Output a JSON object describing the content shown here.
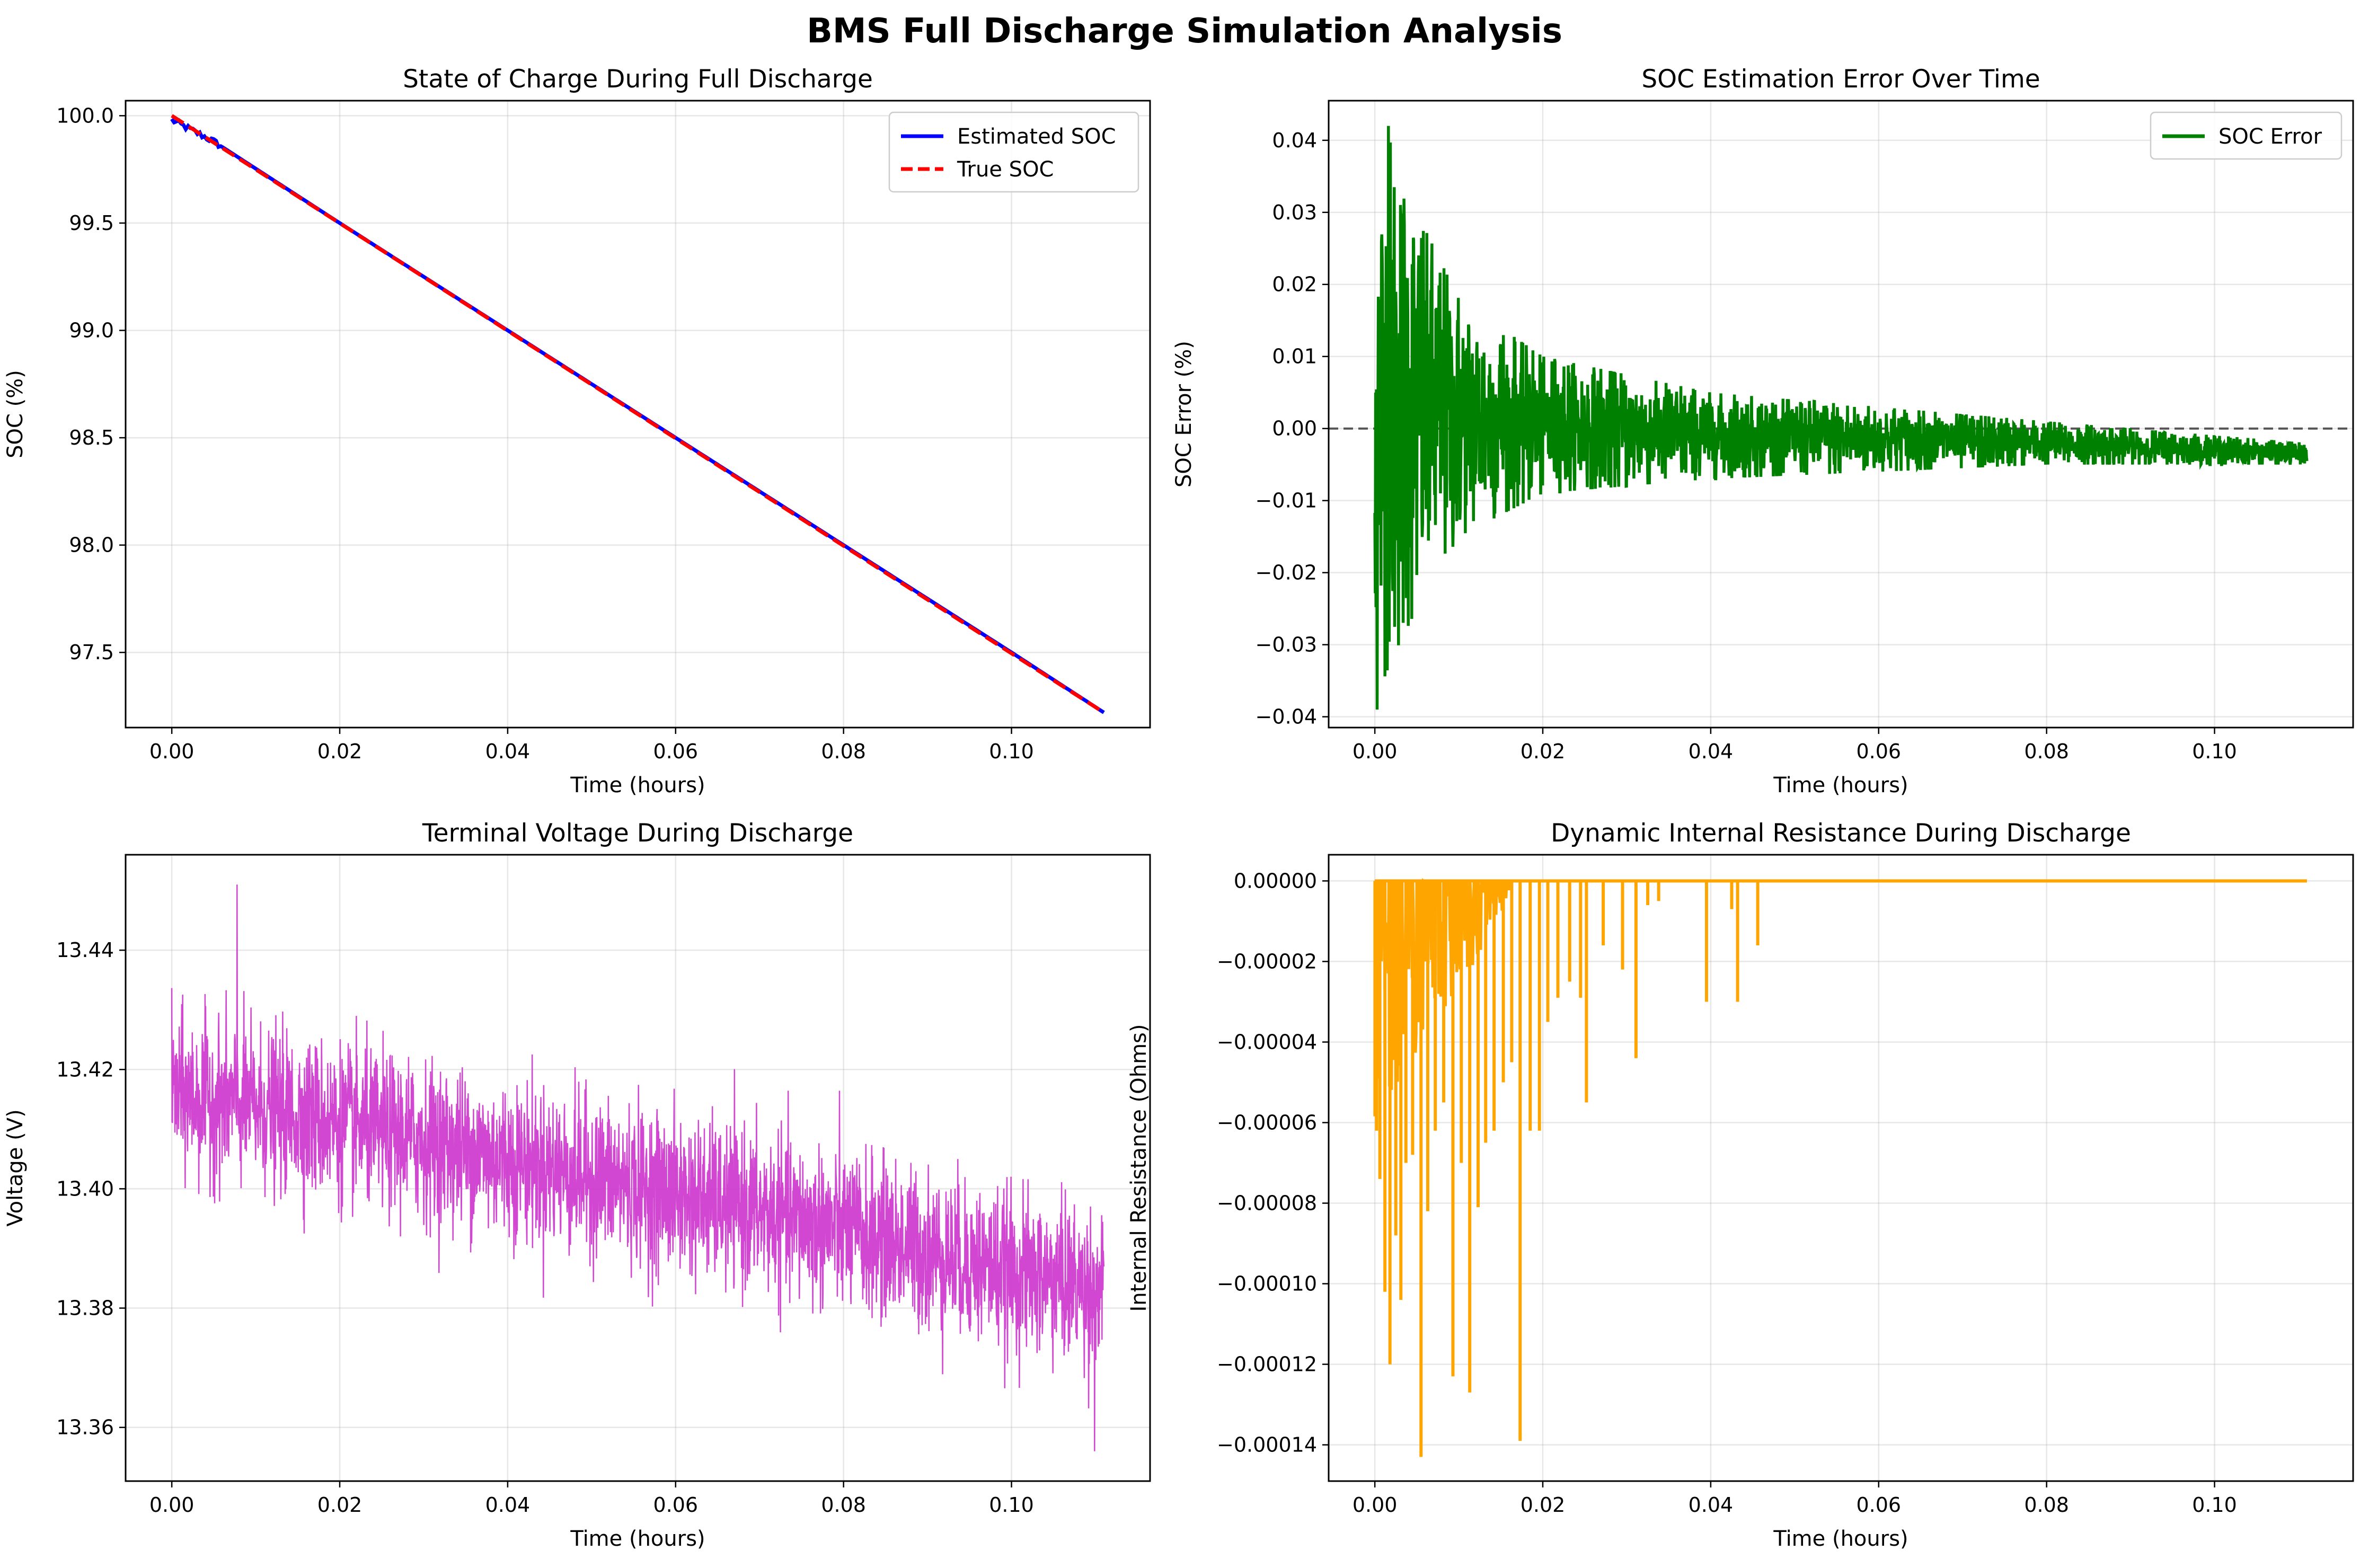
{
  "figure": {
    "title": "BMS Full Discharge Simulation Analysis"
  },
  "chart_data": [
    {
      "id": "soc",
      "type": "line",
      "title": "State of Charge During Full Discharge",
      "xlabel": "Time (hours)",
      "ylabel": "SOC (%)",
      "xlim": [
        -0.0055,
        0.1165
      ],
      "ylim": [
        97.15,
        100.07
      ],
      "xticks": [
        0.0,
        0.02,
        0.04,
        0.06,
        0.08,
        0.1
      ],
      "xtick_labels": [
        "0.00",
        "0.02",
        "0.04",
        "0.06",
        "0.08",
        "0.10"
      ],
      "yticks": [
        97.5,
        98.0,
        98.5,
        99.0,
        99.5,
        100.0
      ],
      "ytick_labels": [
        "97.5",
        "98.0",
        "98.5",
        "99.0",
        "99.5",
        "100.0"
      ],
      "grid": true,
      "legend": "top-right",
      "series": [
        {
          "name": "Estimated SOC",
          "color": "#0000ff",
          "style": "solid",
          "x": [
            0.0,
            0.005,
            0.02,
            0.04,
            0.06,
            0.08,
            0.1,
            0.111
          ],
          "y": [
            99.98,
            99.88,
            99.5,
            99.0,
            98.5,
            98.0,
            97.5,
            97.22
          ]
        },
        {
          "name": "True SOC",
          "color": "#ff0000",
          "style": "dashed",
          "x": [
            0.0,
            0.111
          ],
          "y": [
            100.0,
            97.22
          ]
        }
      ]
    },
    {
      "id": "error",
      "type": "line",
      "title": "SOC Estimation Error Over Time",
      "xlabel": "Time (hours)",
      "ylabel": "SOC Error (%)",
      "xlim": [
        -0.0055,
        0.1165
      ],
      "ylim": [
        -0.0415,
        0.0455
      ],
      "xticks": [
        0.0,
        0.02,
        0.04,
        0.06,
        0.08,
        0.1
      ],
      "xtick_labels": [
        "0.00",
        "0.02",
        "0.04",
        "0.06",
        "0.08",
        "0.10"
      ],
      "yticks": [
        -0.04,
        -0.03,
        -0.02,
        -0.01,
        0.0,
        0.01,
        0.02,
        0.03,
        0.04
      ],
      "ytick_labels": [
        "−0.04",
        "−0.03",
        "−0.02",
        "−0.01",
        "0.00",
        "0.01",
        "0.02",
        "0.03",
        "0.04"
      ],
      "grid": true,
      "legend": "top-right",
      "reference_line": {
        "y": 0.0,
        "style": "dashed",
        "color": "#555555"
      },
      "envelope": {
        "x": [
          0.0,
          0.002,
          0.005,
          0.01,
          0.02,
          0.04,
          0.06,
          0.08,
          0.111
        ],
        "upper": [
          0.036,
          0.04,
          0.03,
          0.018,
          0.01,
          0.005,
          0.003,
          0.001,
          -0.002
        ],
        "lower": [
          -0.038,
          -0.032,
          -0.025,
          -0.015,
          -0.009,
          -0.007,
          -0.006,
          -0.005,
          -0.005
        ],
        "peak": 0.042,
        "trough": -0.039
      },
      "series": [
        {
          "name": "SOC Error",
          "color": "#008000",
          "style": "solid"
        }
      ]
    },
    {
      "id": "voltage",
      "type": "line",
      "title": "Terminal Voltage During Discharge",
      "xlabel": "Time (hours)",
      "ylabel": "Voltage (V)",
      "xlim": [
        -0.0055,
        0.1165
      ],
      "ylim": [
        13.351,
        13.456
      ],
      "xticks": [
        0.0,
        0.02,
        0.04,
        0.06,
        0.08,
        0.1
      ],
      "xtick_labels": [
        "0.00",
        "0.02",
        "0.04",
        "0.06",
        "0.08",
        "0.10"
      ],
      "yticks": [
        13.36,
        13.38,
        13.4,
        13.42,
        13.44
      ],
      "ytick_labels": [
        "13.36",
        "13.38",
        "13.40",
        "13.42",
        "13.44"
      ],
      "grid": true,
      "mean_trend": {
        "x": [
          0.0,
          0.02,
          0.04,
          0.06,
          0.08,
          0.1,
          0.111
        ],
        "y": [
          13.416,
          13.411,
          13.405,
          13.399,
          13.393,
          13.386,
          13.383
        ]
      },
      "noise_sd": 0.0065,
      "extremes": {
        "max": 13.451,
        "min": 13.356
      },
      "series": [
        {
          "name": "Terminal Voltage",
          "color": "#cc33cc",
          "style": "solid"
        }
      ]
    },
    {
      "id": "resistance",
      "type": "line",
      "title": "Dynamic Internal Resistance During Discharge",
      "xlabel": "Time (hours)",
      "ylabel": "Internal Resistance (Ohms)",
      "xlim": [
        -0.0055,
        0.1165
      ],
      "ylim": [
        -0.000149,
        6.5e-06
      ],
      "xticks": [
        0.0,
        0.02,
        0.04,
        0.06,
        0.08,
        0.1
      ],
      "xtick_labels": [
        "0.00",
        "0.02",
        "0.04",
        "0.06",
        "0.08",
        "0.10"
      ],
      "yticks": [
        -0.00014,
        -0.00012,
        -0.0001,
        -8e-05,
        -6e-05,
        -4e-05,
        -2e-05,
        0.0
      ],
      "ytick_labels": [
        "−0.00014",
        "−0.00012",
        "−0.00010",
        "−0.00008",
        "−0.00006",
        "−0.00004",
        "−0.00002",
        "0.00000"
      ],
      "grid": true,
      "baseline": 0.0,
      "spikes": [
        {
          "x": 0.0002,
          "y": -6.2e-05
        },
        {
          "x": 0.0006,
          "y": -7.4e-05
        },
        {
          "x": 0.0012,
          "y": -0.000102
        },
        {
          "x": 0.0018,
          "y": -0.00012
        },
        {
          "x": 0.0025,
          "y": -8.8e-05
        },
        {
          "x": 0.0031,
          "y": -0.000104
        },
        {
          "x": 0.0037,
          "y": -7e-05
        },
        {
          "x": 0.0045,
          "y": -6.8e-05
        },
        {
          "x": 0.0055,
          "y": -0.000143
        },
        {
          "x": 0.0063,
          "y": -8.2e-05
        },
        {
          "x": 0.0072,
          "y": -6.2e-05
        },
        {
          "x": 0.0082,
          "y": -5.5e-05
        },
        {
          "x": 0.0093,
          "y": -0.000123
        },
        {
          "x": 0.0103,
          "y": -7e-05
        },
        {
          "x": 0.0113,
          "y": -0.000127
        },
        {
          "x": 0.0123,
          "y": -8.1e-05
        },
        {
          "x": 0.0132,
          "y": -6.5e-05
        },
        {
          "x": 0.0142,
          "y": -6.2e-05
        },
        {
          "x": 0.0153,
          "y": -5e-05
        },
        {
          "x": 0.0163,
          "y": -4.5e-05
        },
        {
          "x": 0.0173,
          "y": -0.000139
        },
        {
          "x": 0.0185,
          "y": -6.2e-05
        },
        {
          "x": 0.0196,
          "y": -6.2e-05
        },
        {
          "x": 0.0206,
          "y": -3.5e-05
        },
        {
          "x": 0.0218,
          "y": -2.9e-05
        },
        {
          "x": 0.0232,
          "y": -2.5e-05
        },
        {
          "x": 0.0245,
          "y": -2.9e-05
        },
        {
          "x": 0.0252,
          "y": -5.5e-05
        },
        {
          "x": 0.0272,
          "y": -1.6e-05
        },
        {
          "x": 0.0295,
          "y": -2.2e-05
        },
        {
          "x": 0.0311,
          "y": -4.4e-05
        },
        {
          "x": 0.0325,
          "y": -6e-06
        },
        {
          "x": 0.0338,
          "y": -5e-06
        },
        {
          "x": 0.0395,
          "y": -3e-05
        },
        {
          "x": 0.0425,
          "y": -7e-06
        },
        {
          "x": 0.0432,
          "y": -3e-05
        },
        {
          "x": 0.0456,
          "y": -1.6e-05
        }
      ],
      "series": [
        {
          "name": "Internal Resistance",
          "color": "#ffa500",
          "style": "solid"
        }
      ]
    }
  ]
}
